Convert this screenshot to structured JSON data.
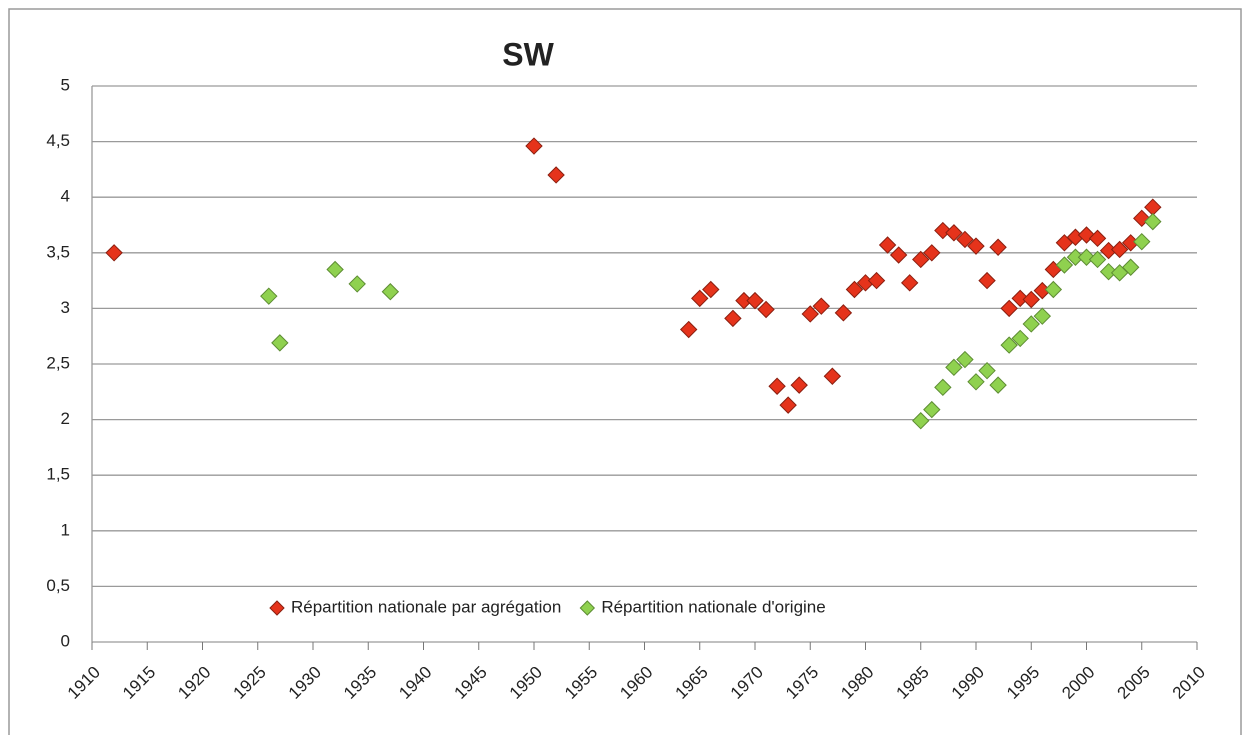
{
  "chart_data": {
    "type": "scatter",
    "title": "SW",
    "legend": "bottom",
    "grid": true,
    "xlim": [
      1910,
      2010
    ],
    "xticks": [
      1910,
      1915,
      1920,
      1925,
      1930,
      1935,
      1940,
      1945,
      1950,
      1955,
      1960,
      1965,
      1970,
      1975,
      1980,
      1985,
      1990,
      1995,
      2000,
      2005,
      2010
    ],
    "ylim": [
      0,
      5
    ],
    "yticks": [
      0,
      {
        "value": 0.5,
        "label": "0,5"
      },
      1,
      {
        "value": 1.5,
        "label": "1,5"
      },
      2,
      {
        "value": 2.5,
        "label": "2,5"
      },
      3,
      {
        "value": 3.5,
        "label": "3,5"
      },
      4,
      {
        "value": 4.5,
        "label": "4,5"
      },
      5
    ],
    "series": [
      {
        "name": "Répartition nationale par agrégation",
        "color": "#e5331b",
        "x": [
          1912,
          1950,
          1952,
          1964,
          1965,
          1966,
          1968,
          1969,
          1970,
          1971,
          1972,
          1973,
          1974,
          1975,
          1976,
          1977,
          1978,
          1979,
          1980,
          1981,
          1982,
          1983,
          1984,
          1985,
          1986,
          1987,
          1988,
          1989,
          1990,
          1991,
          1992,
          1993,
          1994,
          1995,
          1996,
          1997,
          1998,
          1999,
          2000,
          2001,
          2002,
          2003,
          2004,
          2005,
          2006
        ],
        "values": [
          3.5,
          4.46,
          4.2,
          2.81,
          3.09,
          3.17,
          2.91,
          3.07,
          3.07,
          2.99,
          2.3,
          2.13,
          2.31,
          2.95,
          3.02,
          2.39,
          2.96,
          3.17,
          3.23,
          3.25,
          3.57,
          3.48,
          3.23,
          3.44,
          3.5,
          3.7,
          3.68,
          3.62,
          3.56,
          3.25,
          3.55,
          3.0,
          3.09,
          3.08,
          3.16,
          3.35,
          3.59,
          3.64,
          3.66,
          3.63,
          3.52,
          3.53,
          3.59,
          3.81,
          3.91
        ]
      },
      {
        "name": "Répartition nationale d'origine",
        "color": "#8fd14f",
        "x": [
          1926,
          1927,
          1932,
          1934,
          1937,
          1985,
          1986,
          1987,
          1988,
          1989,
          1990,
          1991,
          1992,
          1993,
          1994,
          1995,
          1996,
          1997,
          1998,
          1999,
          2000,
          2001,
          2002,
          2003,
          2004,
          2005,
          2006
        ],
        "values": [
          3.11,
          2.69,
          3.35,
          3.22,
          3.15,
          1.99,
          2.09,
          2.29,
          2.47,
          2.54,
          2.34,
          2.44,
          2.31,
          2.67,
          2.73,
          2.86,
          2.93,
          3.17,
          3.39,
          3.46,
          3.46,
          3.44,
          3.33,
          3.32,
          3.37,
          3.6,
          3.78
        ]
      }
    ]
  }
}
